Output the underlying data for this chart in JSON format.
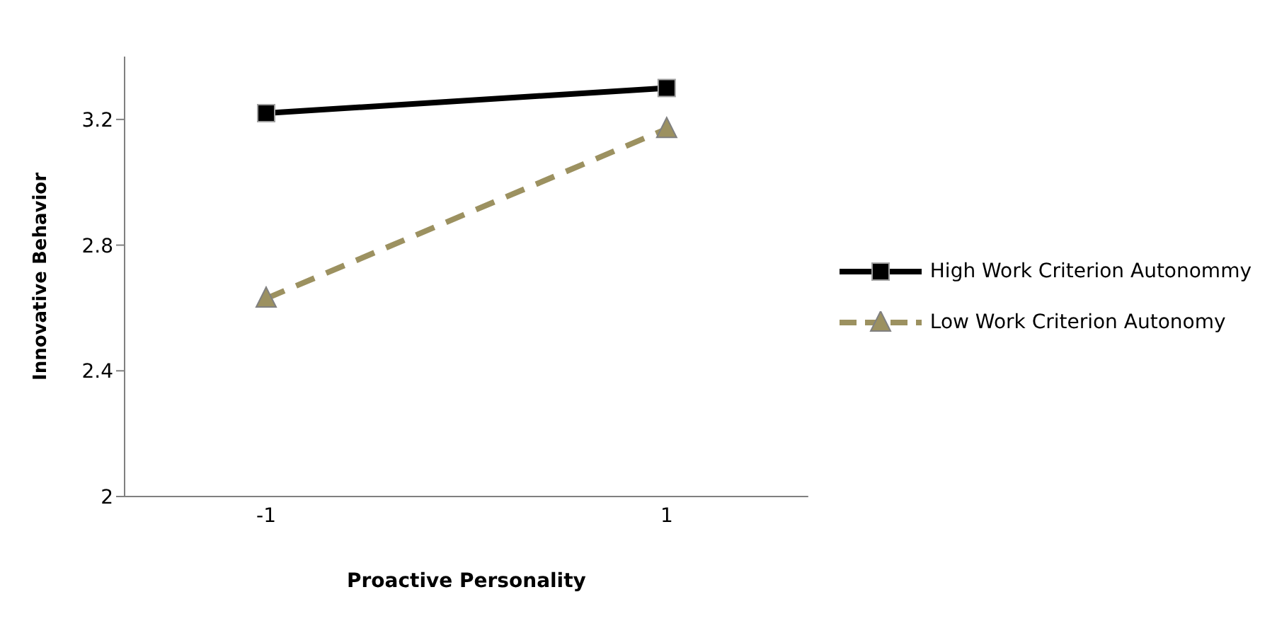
{
  "chart_data": {
    "type": "line",
    "xlabel": "Proactive Personality",
    "ylabel": "Innovative Behavior",
    "categories": [
      "-1",
      "1"
    ],
    "series": [
      {
        "name": "High Work Criterion Autonommy",
        "color": "#000000",
        "values": [
          3.22,
          3.3
        ],
        "marker": "square",
        "line_style": "solid"
      },
      {
        "name": "Low Work Criterion Autonomy",
        "color": "#9c9160",
        "values": [
          2.63,
          3.17
        ],
        "marker": "triangle",
        "line_style": "dashed"
      }
    ],
    "ylim": [
      2,
      3.4
    ],
    "yticks": [
      2,
      2.4,
      2.8,
      3.2
    ],
    "grid": false,
    "legend": "right"
  }
}
